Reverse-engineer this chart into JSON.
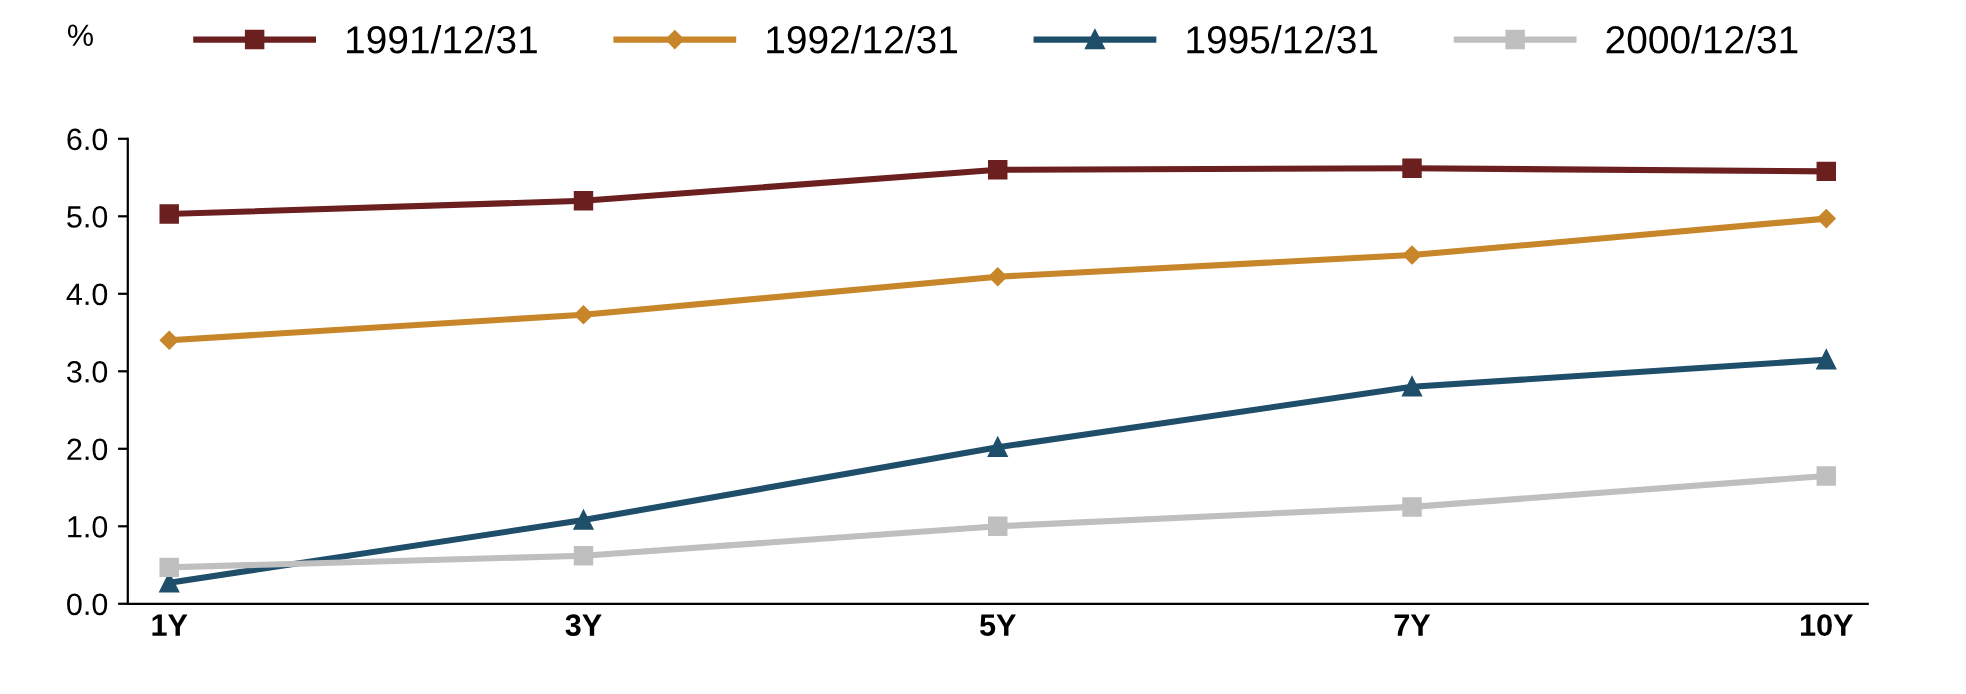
{
  "chart_data": {
    "type": "line",
    "ylabel": "%",
    "categories": [
      "1Y",
      "3Y",
      "5Y",
      "7Y",
      "10Y"
    ],
    "series": [
      {
        "name": "1991/12/31",
        "color": "#6b1f1f",
        "marker": "square",
        "values": [
          5.03,
          5.2,
          5.6,
          5.62,
          5.58
        ]
      },
      {
        "name": "1992/12/31",
        "color": "#c8862a",
        "marker": "diamond",
        "values": [
          3.4,
          3.73,
          4.22,
          4.5,
          4.97
        ]
      },
      {
        "name": "1995/12/31",
        "color": "#1f4e6b",
        "marker": "triangle",
        "values": [
          0.27,
          1.08,
          2.02,
          2.8,
          3.15
        ]
      },
      {
        "name": "2000/12/31",
        "color": "#bfbfbf",
        "marker": "square",
        "values": [
          0.47,
          0.62,
          1.0,
          1.25,
          1.65
        ]
      }
    ],
    "ylim": [
      0,
      6
    ],
    "yticks": [
      {
        "value": 0,
        "label": "0.0"
      },
      {
        "value": 1,
        "label": "1.0"
      },
      {
        "value": 2,
        "label": "2.0"
      },
      {
        "value": 3,
        "label": "3.0"
      },
      {
        "value": 4,
        "label": "4.0"
      },
      {
        "value": 5,
        "label": "5.0"
      },
      {
        "value": 6,
        "label": "6.0"
      }
    ],
    "grid": false,
    "legend": "top",
    "line_style": "solid"
  }
}
